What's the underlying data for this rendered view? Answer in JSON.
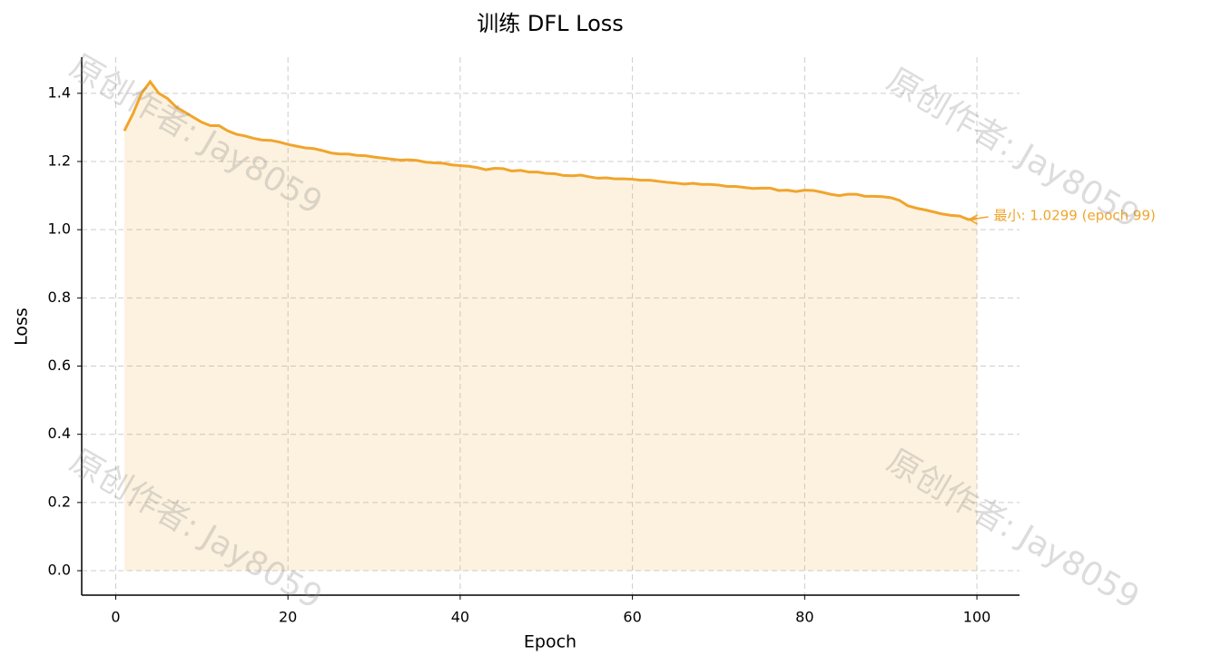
{
  "chart_data": {
    "type": "line",
    "title": "训练 DFL Loss",
    "xlabel": "Epoch",
    "ylabel": "Loss",
    "x": [
      1,
      2,
      3,
      4,
      5,
      6,
      7,
      8,
      9,
      10,
      11,
      12,
      13,
      14,
      15,
      16,
      17,
      18,
      19,
      20,
      21,
      22,
      23,
      24,
      25,
      26,
      27,
      28,
      29,
      30,
      31,
      32,
      33,
      34,
      35,
      36,
      37,
      38,
      39,
      40,
      41,
      42,
      43,
      44,
      45,
      46,
      47,
      48,
      49,
      50,
      51,
      52,
      53,
      54,
      55,
      56,
      57,
      58,
      59,
      60,
      61,
      62,
      63,
      64,
      65,
      66,
      67,
      68,
      69,
      70,
      71,
      72,
      73,
      74,
      75,
      76,
      77,
      78,
      79,
      80,
      81,
      82,
      83,
      84,
      85,
      86,
      87,
      88,
      89,
      90,
      91,
      92,
      93,
      94,
      95,
      96,
      97,
      98,
      99,
      100
    ],
    "series": [
      {
        "name": "DFL Loss",
        "color": "#f0a52c",
        "values": [
          1.29,
          1.34,
          1.4,
          1.434,
          1.4,
          1.385,
          1.36,
          1.345,
          1.33,
          1.315,
          1.305,
          1.305,
          1.29,
          1.28,
          1.275,
          1.268,
          1.263,
          1.262,
          1.257,
          1.25,
          1.245,
          1.24,
          1.238,
          1.232,
          1.225,
          1.222,
          1.222,
          1.218,
          1.217,
          1.213,
          1.21,
          1.207,
          1.204,
          1.205,
          1.203,
          1.198,
          1.196,
          1.195,
          1.19,
          1.188,
          1.186,
          1.182,
          1.176,
          1.18,
          1.179,
          1.172,
          1.174,
          1.169,
          1.169,
          1.165,
          1.164,
          1.159,
          1.158,
          1.16,
          1.155,
          1.151,
          1.152,
          1.149,
          1.149,
          1.148,
          1.145,
          1.145,
          1.142,
          1.139,
          1.137,
          1.134,
          1.136,
          1.133,
          1.133,
          1.131,
          1.127,
          1.127,
          1.124,
          1.121,
          1.122,
          1.122,
          1.115,
          1.116,
          1.112,
          1.116,
          1.115,
          1.11,
          1.104,
          1.1,
          1.104,
          1.104,
          1.098,
          1.098,
          1.097,
          1.094,
          1.086,
          1.07,
          1.063,
          1.058,
          1.052,
          1.046,
          1.042,
          1.04,
          1.0299,
          1.033
        ]
      }
    ],
    "annotation": {
      "text": "最小: 1.0299 (epoch 99)",
      "x": 99,
      "y": 1.0299
    },
    "watermark": "原创作者: Jay8059",
    "xlim": [
      -3.95,
      104.95
    ],
    "ylim": [
      -0.0717,
      1.506
    ],
    "xticks": [
      0,
      20,
      40,
      60,
      80,
      100
    ],
    "yticks": [
      {
        "value": 0,
        "label": "0.0"
      },
      0.2,
      0.4,
      0.6,
      0.8,
      {
        "value": 1,
        "label": "1.0"
      },
      1.2,
      1.4
    ],
    "grid": true
  }
}
